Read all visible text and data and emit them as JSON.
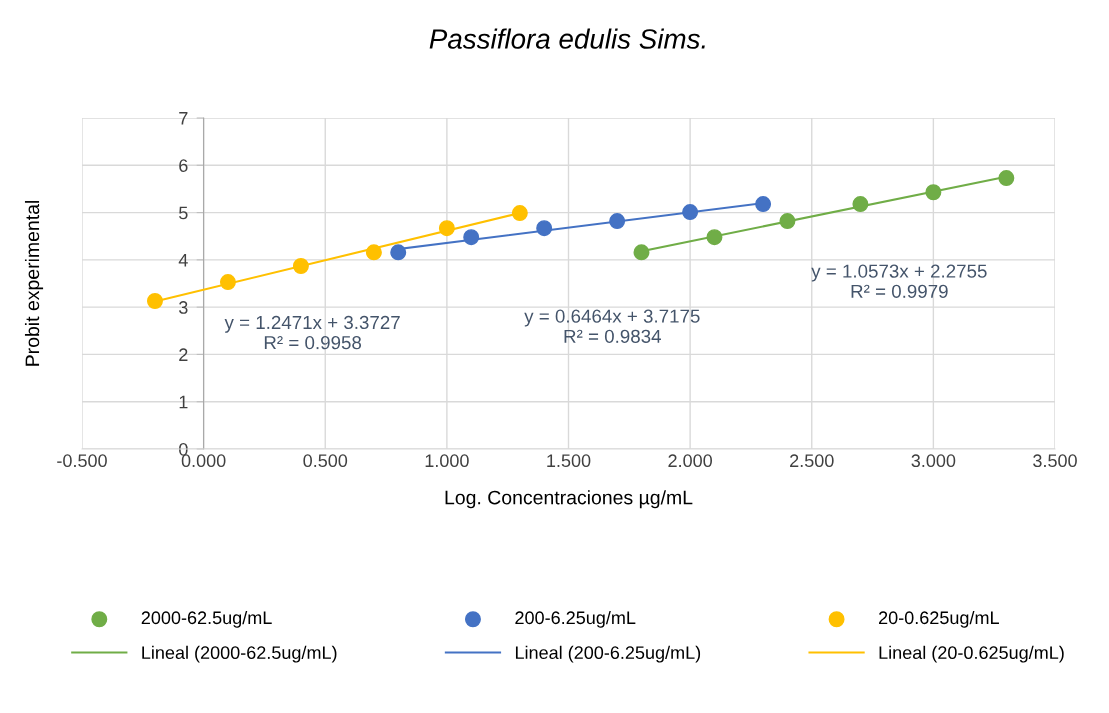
{
  "chart_data": {
    "type": "scatter",
    "title": "Passiflora edulis Sims.",
    "xlabel": "Log. Concentraciones µg/mL",
    "ylabel": "Probit experimental",
    "xlim": [
      -0.5,
      3.5
    ],
    "xticks": [
      {
        "value": -0.5,
        "label": "-0.500"
      },
      {
        "value": 0,
        "label": "0.000"
      },
      {
        "value": 0.5,
        "label": "0.500"
      },
      {
        "value": 1,
        "label": "1.000"
      },
      {
        "value": 1.5,
        "label": "1.500"
      },
      {
        "value": 2,
        "label": "2.000"
      },
      {
        "value": 2.5,
        "label": "2.500"
      },
      {
        "value": 3,
        "label": "3.000"
      },
      {
        "value": 3.5,
        "label": "3.500"
      }
    ],
    "ylim": [
      0,
      7
    ],
    "yticks": [
      0,
      1,
      2,
      3,
      4,
      5,
      6,
      7
    ],
    "grid": true,
    "legend": "bottom",
    "series": [
      {
        "name": "2000-62.5ug/mL",
        "marker": "circle",
        "color": "#70ad47",
        "x": [
          1.8,
          2.1,
          2.4,
          2.7,
          3.0,
          3.3
        ],
        "values": [
          4.16,
          4.48,
          4.82,
          5.18,
          5.43,
          5.73
        ]
      },
      {
        "name": "200-6.25ug/mL",
        "marker": "circle",
        "color": "#4472c4",
        "x": [
          0.8,
          1.1,
          1.4,
          1.7,
          2.0,
          2.3
        ],
        "values": [
          4.16,
          4.48,
          4.67,
          4.82,
          5.01,
          5.18
        ]
      },
      {
        "name": "20-0.625ug/mL",
        "marker": "circle",
        "color": "#ffc000",
        "x": [
          -0.2,
          0.1,
          0.4,
          0.7,
          1.0,
          1.3
        ],
        "values": [
          3.13,
          3.53,
          3.87,
          4.16,
          4.67,
          4.99
        ]
      },
      {
        "name": "Lineal (2000-62.5ug/mL)",
        "type": "line",
        "marker": "none",
        "color": "#70ad47",
        "x": [
          1.8,
          3.3
        ],
        "values": [
          4.18,
          5.76
        ]
      },
      {
        "name": "Lineal (200-6.25ug/mL)",
        "type": "line",
        "marker": "none",
        "color": "#4472c4",
        "x": [
          0.8,
          2.3
        ],
        "values": [
          4.23,
          5.2
        ]
      },
      {
        "name": "Lineal (20-0.625ug/mL)",
        "type": "line",
        "marker": "none",
        "color": "#ffc000",
        "x": [
          -0.2,
          1.3
        ],
        "values": [
          3.12,
          4.99
        ]
      }
    ],
    "annotations": [
      "y = 1.2471x + 3.3727\nR² = 0.9958",
      "y = 0.6464x + 3.7175\nR² = 0.9834",
      "y = 1.0573x + 2.2755\nR² = 0.9979"
    ]
  }
}
